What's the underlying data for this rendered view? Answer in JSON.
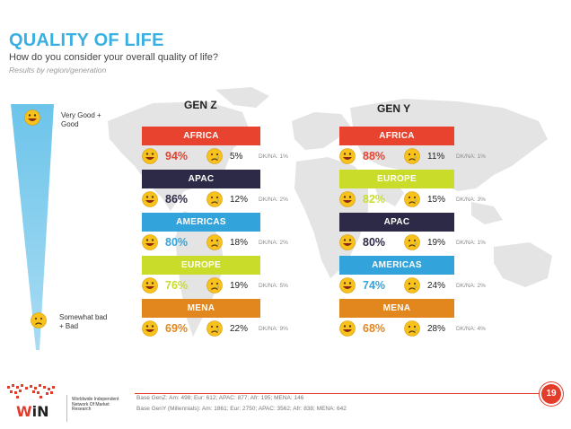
{
  "header": {
    "title": "QUALITY OF LIFE",
    "subtitle": "How do you consider your overall quality of life?",
    "caption": "Results by region/generation"
  },
  "scale": {
    "top_label": "Very Good + Good",
    "bottom_label": "Somewhat bad + Bad"
  },
  "gen_z": {
    "heading": "GEN Z",
    "rows": [
      {
        "region": "AFRICA",
        "good": "94%",
        "bad": "5%",
        "dk": "DK/NA: 1%",
        "color": "#e8432e",
        "pct_color": "#e8432e"
      },
      {
        "region": "APAC",
        "good": "86%",
        "bad": "12%",
        "dk": "DK/NA: 2%",
        "color": "#2d2a48",
        "pct_color": "#2d2a48"
      },
      {
        "region": "AMERICAS",
        "good": "80%",
        "bad": "18%",
        "dk": "DK/NA: 2%",
        "color": "#33a4db",
        "pct_color": "#33a4db"
      },
      {
        "region": "EUROPE",
        "good": "76%",
        "bad": "19%",
        "dk": "DK/NA: 5%",
        "color": "#c9dc2a",
        "pct_color": "#c9dc2a"
      },
      {
        "region": "MENA",
        "good": "69%",
        "bad": "22%",
        "dk": "DK/NA: 9%",
        "color": "#e2861e",
        "pct_color": "#e2861e"
      }
    ]
  },
  "gen_y": {
    "heading": "GEN Y",
    "rows": [
      {
        "region": "AFRICA",
        "good": "88%",
        "bad": "11%",
        "dk": "DK/NA: 1%",
        "color": "#e8432e",
        "pct_color": "#e8432e"
      },
      {
        "region": "EUROPE",
        "good": "82%",
        "bad": "15%",
        "dk": "DK/NA: 3%",
        "color": "#c9dc2a",
        "pct_color": "#c9dc2a"
      },
      {
        "region": "APAC",
        "good": "80%",
        "bad": "19%",
        "dk": "DK/NA: 1%",
        "color": "#2d2a48",
        "pct_color": "#2d2a48"
      },
      {
        "region": "AMERICAS",
        "good": "74%",
        "bad": "24%",
        "dk": "DK/NA: 2%",
        "color": "#33a4db",
        "pct_color": "#33a4db"
      },
      {
        "region": "MENA",
        "good": "68%",
        "bad": "28%",
        "dk": "DK/NA: 4%",
        "color": "#e2861e",
        "pct_color": "#e2861e"
      }
    ]
  },
  "footer": {
    "logo_text": "WiN",
    "logo_tagline": "Worldwide Independent Network Of Market Research",
    "base_genz": "Base GenZ:  Am: 498; Eur: 612; APAC: 877; Afr: 195; MENA: 146",
    "base_geny": "Base GenY (Millennials): Am: 1861; Eur: 2750; APAC: 3562; Afr: 838; MENA: 642",
    "page_number": "19"
  },
  "icons": {
    "happy": "happy-face-icon",
    "sad": "sad-face-icon",
    "map": "world-map-illustration",
    "logo": "win-logo-icon"
  }
}
